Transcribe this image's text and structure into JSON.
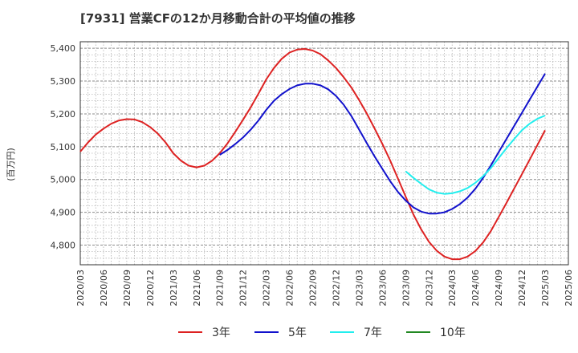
{
  "chart_data": {
    "type": "line",
    "title": "[7931]  営業CFの12か月移動合計の平均値の推移",
    "ylabel": "(百万円)",
    "xlabel": "",
    "ylim": [
      4740,
      5420
    ],
    "y_ticks": [
      4800,
      4900,
      5000,
      5100,
      5200,
      5300,
      5400
    ],
    "y_tick_labels": [
      "4,800",
      "4,900",
      "5,000",
      "5,100",
      "5,200",
      "5,300",
      "5,400"
    ],
    "x_tick_labels": [
      "2020/03",
      "2020/06",
      "2020/09",
      "2020/12",
      "2021/03",
      "2021/06",
      "2021/09",
      "2021/12",
      "2022/03",
      "2022/06",
      "2022/09",
      "2022/12",
      "2023/03",
      "2023/06",
      "2023/09",
      "2023/12",
      "2024/03",
      "2024/06",
      "2024/09",
      "2024/12",
      "2025/03",
      "2025/06"
    ],
    "grid": true,
    "legend_position": "bottom",
    "series": [
      {
        "name": "3年",
        "color": "#dd2222",
        "x": [
          "2020/03",
          "2020/04",
          "2020/05",
          "2020/06",
          "2020/07",
          "2020/08",
          "2020/09",
          "2020/10",
          "2020/11",
          "2020/12",
          "2021/01",
          "2021/02",
          "2021/03",
          "2021/04",
          "2021/05",
          "2021/06",
          "2021/07",
          "2021/08",
          "2021/09",
          "2021/10",
          "2021/11",
          "2021/12",
          "2022/01",
          "2022/02",
          "2022/03",
          "2022/04",
          "2022/05",
          "2022/06",
          "2022/07",
          "2022/08",
          "2022/09",
          "2022/10",
          "2022/11",
          "2022/12",
          "2023/01",
          "2023/02",
          "2023/03",
          "2023/04",
          "2023/05",
          "2023/06",
          "2023/07",
          "2023/08",
          "2023/09",
          "2023/10",
          "2023/11",
          "2023/12",
          "2024/01",
          "2024/02",
          "2024/03",
          "2024/04",
          "2024/05",
          "2024/06",
          "2024/07",
          "2024/08",
          "2024/09",
          "2024/10",
          "2024/11",
          "2024/12",
          "2025/01",
          "2025/02",
          "2025/03"
        ],
        "values": [
          5085,
          5113,
          5137,
          5155,
          5170,
          5180,
          5184,
          5183,
          5175,
          5160,
          5140,
          5113,
          5080,
          5057,
          5042,
          5037,
          5042,
          5057,
          5080,
          5110,
          5145,
          5182,
          5220,
          5262,
          5305,
          5340,
          5368,
          5387,
          5396,
          5398,
          5393,
          5382,
          5363,
          5340,
          5312,
          5280,
          5242,
          5200,
          5155,
          5108,
          5058,
          5003,
          4948,
          4893,
          4848,
          4810,
          4783,
          4765,
          4757,
          4757,
          4765,
          4782,
          4808,
          4843,
          4885,
          4928,
          4972,
          5016,
          5060,
          5105,
          5150
        ]
      },
      {
        "name": "5年",
        "color": "#1111cc",
        "x": [
          "2021/09",
          "2021/10",
          "2021/11",
          "2021/12",
          "2022/01",
          "2022/02",
          "2022/03",
          "2022/04",
          "2022/05",
          "2022/06",
          "2022/07",
          "2022/08",
          "2022/09",
          "2022/10",
          "2022/11",
          "2022/12",
          "2023/01",
          "2023/02",
          "2023/03",
          "2023/04",
          "2023/05",
          "2023/06",
          "2023/07",
          "2023/08",
          "2023/09",
          "2023/10",
          "2023/11",
          "2023/12",
          "2024/01",
          "2024/02",
          "2024/03",
          "2024/04",
          "2024/05",
          "2024/06",
          "2024/07",
          "2024/08",
          "2024/09",
          "2024/10",
          "2024/11",
          "2024/12",
          "2025/01",
          "2025/02",
          "2025/03"
        ],
        "values": [
          5075,
          5090,
          5108,
          5128,
          5152,
          5180,
          5212,
          5240,
          5260,
          5276,
          5287,
          5292,
          5292,
          5287,
          5275,
          5255,
          5228,
          5193,
          5152,
          5110,
          5070,
          5032,
          4995,
          4962,
          4936,
          4915,
          4902,
          4896,
          4896,
          4900,
          4910,
          4925,
          4945,
          4972,
          5005,
          5043,
          5083,
          5123,
          5163,
          5203,
          5243,
          5283,
          5323
        ]
      },
      {
        "name": "7年",
        "color": "#22eeee",
        "x": [
          "2023/09",
          "2023/10",
          "2023/11",
          "2023/12",
          "2024/01",
          "2024/02",
          "2024/03",
          "2024/04",
          "2024/05",
          "2024/06",
          "2024/07",
          "2024/08",
          "2024/09",
          "2024/10",
          "2024/11",
          "2024/12",
          "2025/01",
          "2025/02",
          "2025/03"
        ],
        "values": [
          5025,
          5005,
          4987,
          4970,
          4960,
          4956,
          4958,
          4964,
          4974,
          4990,
          5010,
          5035,
          5065,
          5095,
          5123,
          5150,
          5170,
          5185,
          5195
        ]
      },
      {
        "name": "10年",
        "color": "#228822",
        "x": [],
        "values": []
      }
    ]
  }
}
